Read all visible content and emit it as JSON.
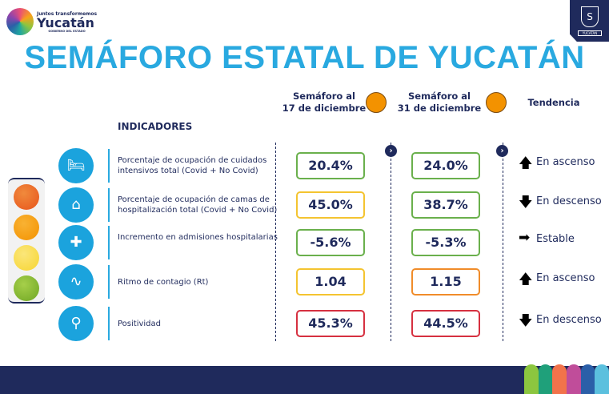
{
  "branding": {
    "logo_line1": "Juntos transformemos",
    "logo_line2": "Yucatán",
    "logo_line3": "GOBIERNO DEL ESTADO",
    "seal_label": "YUCATÁN"
  },
  "title": "SEMÁFORO ESTATAL DE YUCATÁN",
  "columns": {
    "col1": {
      "line1": "Semáforo al",
      "line2": "17 de diciembre",
      "color": "#f39200"
    },
    "col2": {
      "line1": "Semáforo al",
      "line2": "31 de diciembre",
      "color": "#f39200"
    },
    "trend": "Tendencia"
  },
  "indicators_label": "INDICADORES",
  "rows": [
    {
      "icon": "icu-bed-icon",
      "label": "Porcentaje de ocupación de cuidados intensivos total (Covid + No Covid)",
      "v1": "20.4%",
      "c1": "#6ab04c",
      "v2": "24.0%",
      "c2": "#6ab04c",
      "arrow": "up",
      "trend": "En ascenso"
    },
    {
      "icon": "hospital-bed-icon",
      "label": "Porcentaje de ocupación de camas de hospitalización total (Covid + No Covid)",
      "v1": "45.0%",
      "c1": "#f4c430",
      "v2": "38.7%",
      "c2": "#6ab04c",
      "arrow": "down",
      "trend": "En descenso"
    },
    {
      "icon": "ambulance-icon",
      "label": "Incremento en admisiones hospitalarias",
      "v1": "-5.6%",
      "c1": "#6ab04c",
      "v2": "-5.3%",
      "c2": "#6ab04c",
      "arrow": "right",
      "trend": "Estable"
    },
    {
      "icon": "contagion-chart-icon",
      "label": "Ritmo de contagio (Rt)",
      "v1": "1.04",
      "c1": "#f4c430",
      "v2": "1.15",
      "c2": "#f08c2a",
      "arrow": "up",
      "trend": "En ascenso"
    },
    {
      "icon": "swab-test-icon",
      "label": "Positividad",
      "v1": "45.3%",
      "c1": "#d63040",
      "v2": "44.5%",
      "c2": "#d63040",
      "arrow": "down",
      "trend": "En descenso"
    }
  ],
  "traffic_light": [
    "#e8541c",
    "#f39200",
    "#f7d531",
    "#7bb526"
  ]
}
